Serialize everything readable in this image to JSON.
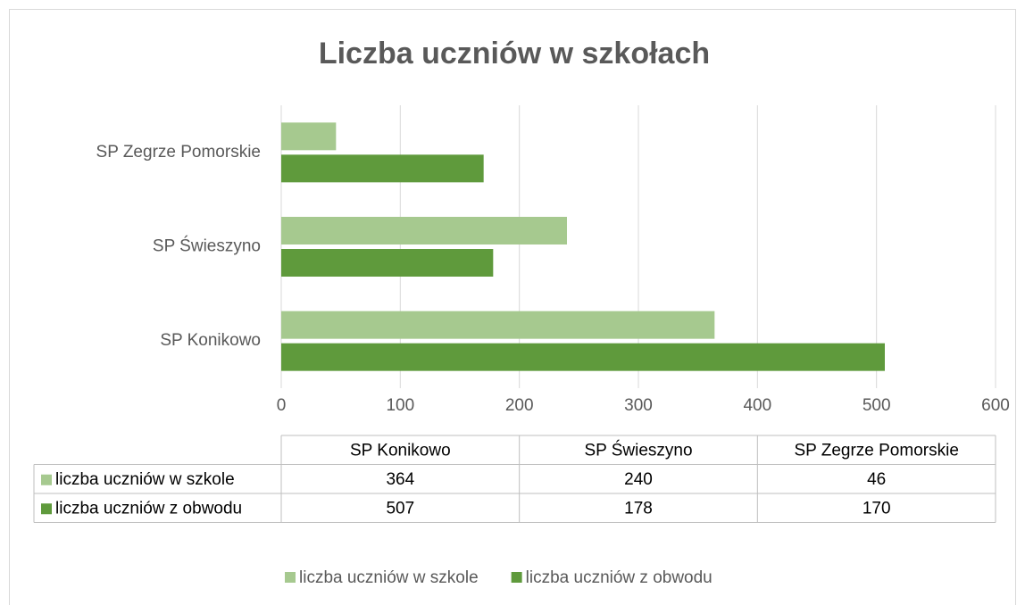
{
  "chart_data": {
    "type": "bar",
    "orientation": "horizontal",
    "title": "Liczba uczniów w szkołach",
    "categories": [
      "SP Konikowo",
      "SP Świeszyno",
      "SP Zegrze Pomorskie"
    ],
    "series": [
      {
        "name": "liczba uczniów w szkole",
        "color": "#a6c98f",
        "values": [
          364,
          240,
          46
        ]
      },
      {
        "name": "liczba uczniów z obwodu",
        "color": "#5f9a3c",
        "values": [
          507,
          178,
          170
        ]
      }
    ],
    "xlim": [
      0,
      600
    ],
    "xticks": [
      0,
      100,
      200,
      300,
      400,
      500,
      600
    ],
    "grid": true,
    "data_table": true,
    "legend": "bottom"
  }
}
